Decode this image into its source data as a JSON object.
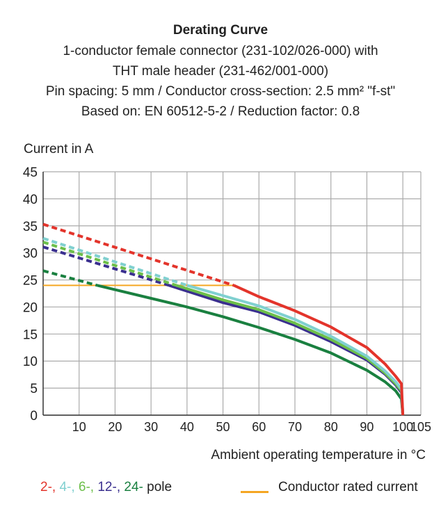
{
  "title_lines": [
    "Derating Curve",
    "1-conductor female connector (231-102/026-000) with",
    "THT male header (231-462/001-000)",
    "Pin spacing: 5 mm / Conductor cross-section: 2.5 mm² \"f-st\"",
    "Based on: EN 60512-5-2 / Reduction factor: 0.8"
  ],
  "chart_data": {
    "type": "line",
    "ylabel": "Current in A",
    "xlabel": "Ambient operating temperature in °C",
    "xlim": [
      0,
      105
    ],
    "ylim": [
      0,
      45
    ],
    "grid": true,
    "xticks": [
      "10",
      "20",
      "30",
      "40",
      "50",
      "60",
      "70",
      "80",
      "90",
      "100",
      "105"
    ],
    "yticks": [
      "0",
      "5",
      "10",
      "15",
      "20",
      "25",
      "30",
      "35",
      "40",
      "45"
    ],
    "series": [
      {
        "name": "2-",
        "color": "#e3342b",
        "dashed": [
          [
            0,
            35.3
          ],
          [
            53,
            24
          ]
        ],
        "solid": [
          [
            53,
            24
          ],
          [
            60,
            21.9
          ],
          [
            70,
            19.3
          ],
          [
            80,
            16.3
          ],
          [
            90,
            12.5
          ],
          [
            95,
            9.5
          ],
          [
            98,
            7.2
          ],
          [
            99.6,
            5.8
          ],
          [
            100,
            0
          ]
        ]
      },
      {
        "name": "4-",
        "color": "#80d0d0",
        "dashed": [
          [
            0,
            32.7
          ],
          [
            40,
            24
          ]
        ],
        "solid": [
          [
            40,
            24
          ],
          [
            50,
            22.1
          ],
          [
            60,
            20.2
          ],
          [
            70,
            17.7
          ],
          [
            80,
            14.6
          ],
          [
            90,
            10.9
          ],
          [
            95,
            8.2
          ],
          [
            98,
            6.2
          ],
          [
            99.6,
            4.8
          ],
          [
            100,
            0
          ]
        ]
      },
      {
        "name": "6-",
        "color": "#6cbf4a",
        "dashed": [
          [
            0,
            32
          ],
          [
            37,
            24
          ]
        ],
        "solid": [
          [
            37,
            24
          ],
          [
            50,
            21.3
          ],
          [
            60,
            19.5
          ],
          [
            70,
            17
          ],
          [
            80,
            14
          ],
          [
            90,
            10.5
          ],
          [
            95,
            7.8
          ],
          [
            98,
            5.8
          ],
          [
            99.6,
            4.5
          ],
          [
            100,
            0
          ]
        ]
      },
      {
        "name": "12-",
        "color": "#3a2f8f",
        "dashed": [
          [
            0,
            31.1
          ],
          [
            35,
            24
          ]
        ],
        "solid": [
          [
            35,
            24
          ],
          [
            50,
            20.8
          ],
          [
            60,
            19.1
          ],
          [
            70,
            16.6
          ],
          [
            80,
            13.6
          ],
          [
            90,
            10.2
          ],
          [
            95,
            7.6
          ],
          [
            98,
            5.6
          ],
          [
            99.6,
            4.2
          ],
          [
            100,
            0
          ]
        ]
      },
      {
        "name": "24-",
        "color": "#1a8040",
        "dashed": [
          [
            0,
            26.7
          ],
          [
            15,
            24
          ]
        ],
        "solid": [
          [
            15,
            24
          ],
          [
            20,
            23.2
          ],
          [
            30,
            21.6
          ],
          [
            40,
            20
          ],
          [
            50,
            18.2
          ],
          [
            60,
            16.2
          ],
          [
            70,
            14
          ],
          [
            80,
            11.5
          ],
          [
            90,
            8.3
          ],
          [
            95,
            6.2
          ],
          [
            98,
            4.5
          ],
          [
            99.6,
            3
          ],
          [
            100,
            0
          ]
        ]
      }
    ],
    "rated_current": {
      "name": "Conductor rated current",
      "color": "#f5a623",
      "points": [
        [
          0,
          24
        ],
        [
          53,
          24
        ]
      ]
    }
  },
  "legend": {
    "suffix": "pole",
    "rated_label": "Conductor rated current"
  }
}
